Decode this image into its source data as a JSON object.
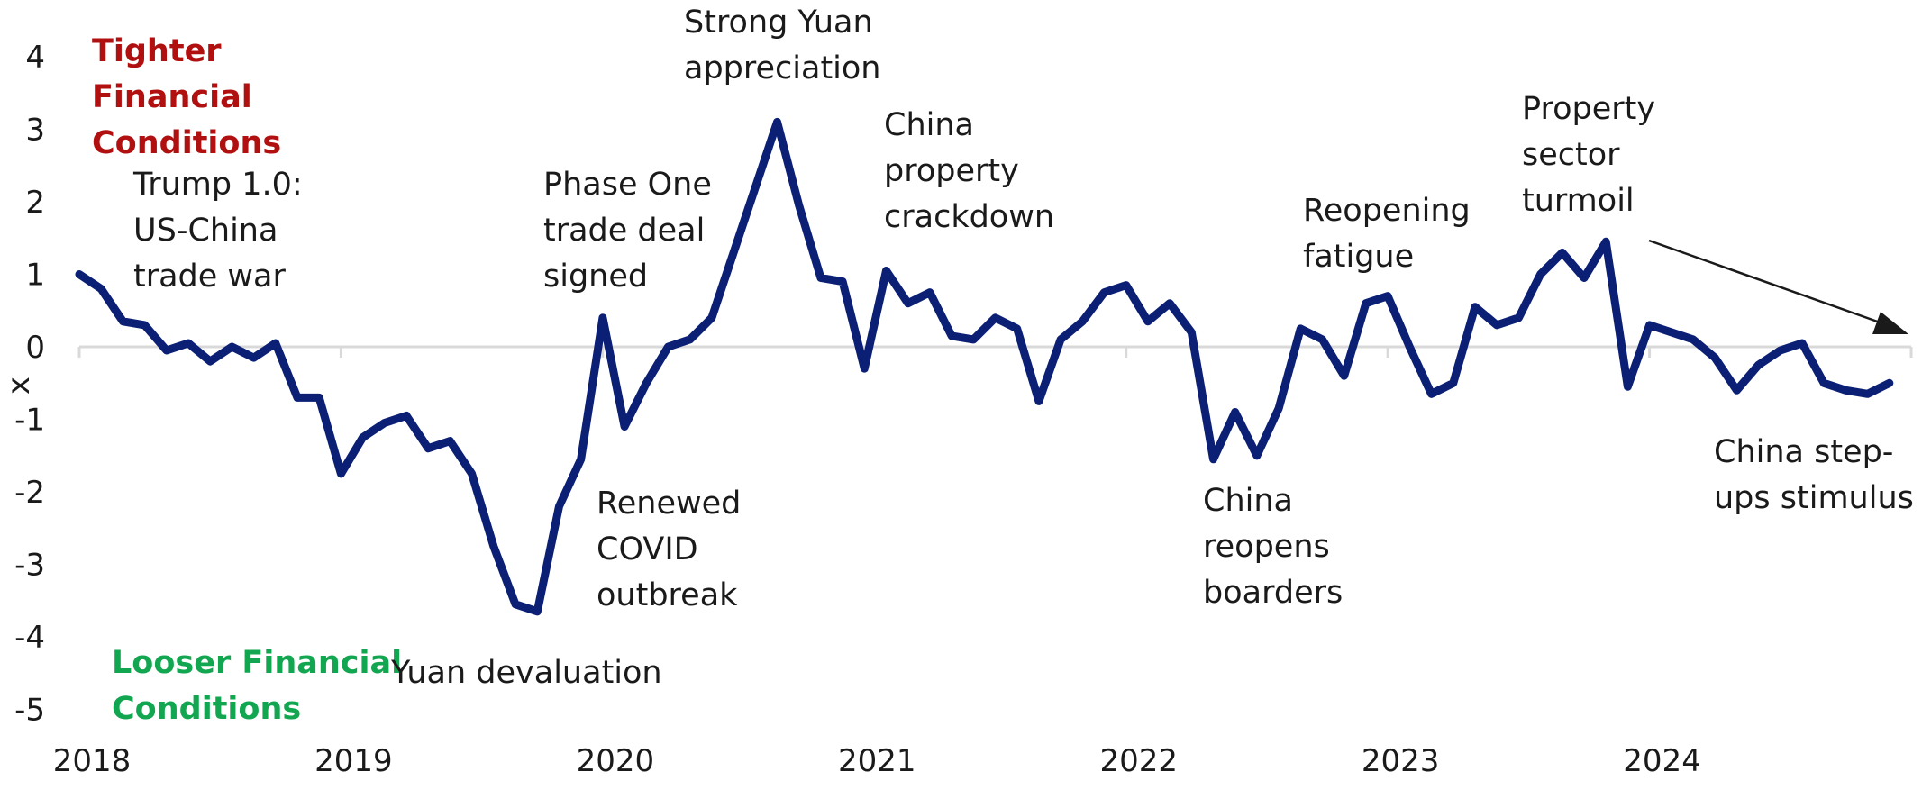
{
  "chart_data": {
    "type": "line",
    "ylabel": "x",
    "ylim": [
      -5,
      4
    ],
    "yticks": [
      "4",
      "3",
      "2",
      "1",
      "0",
      "-1",
      "-2",
      "-3",
      "-4",
      "-5"
    ],
    "xticks": [
      "2018",
      "2019",
      "2020",
      "2021",
      "2022",
      "2023",
      "2024"
    ],
    "grid": false,
    "line_color": "#0b1f75",
    "series": [
      {
        "values": [
          {
            "date": "2018-01",
            "y": 1.0
          },
          {
            "date": "2018-02",
            "y": 0.8
          },
          {
            "date": "2018-03",
            "y": 0.35
          },
          {
            "date": "2018-04",
            "y": 0.3
          },
          {
            "date": "2018-05",
            "y": -0.05
          },
          {
            "date": "2018-06",
            "y": 0.05
          },
          {
            "date": "2018-07",
            "y": -0.2
          },
          {
            "date": "2018-08",
            "y": 0.0
          },
          {
            "date": "2018-09",
            "y": -0.15
          },
          {
            "date": "2018-10",
            "y": 0.05
          },
          {
            "date": "2018-11",
            "y": -0.7
          },
          {
            "date": "2018-12",
            "y": -0.7
          },
          {
            "date": "2019-01",
            "y": -1.75
          },
          {
            "date": "2019-02",
            "y": -1.25
          },
          {
            "date": "2019-03",
            "y": -1.05
          },
          {
            "date": "2019-04",
            "y": -0.95
          },
          {
            "date": "2019-05",
            "y": -1.4
          },
          {
            "date": "2019-06",
            "y": -1.3
          },
          {
            "date": "2019-07",
            "y": -1.75
          },
          {
            "date": "2019-08",
            "y": -2.75
          },
          {
            "date": "2019-09",
            "y": -3.55
          },
          {
            "date": "2019-10",
            "y": -3.65
          },
          {
            "date": "2019-11",
            "y": -2.2
          },
          {
            "date": "2019-12",
            "y": -1.55
          },
          {
            "date": "2020-01",
            "y": 0.4
          },
          {
            "date": "2020-02",
            "y": -1.1
          },
          {
            "date": "2020-03",
            "y": -0.5
          },
          {
            "date": "2020-04",
            "y": 0.0
          },
          {
            "date": "2020-05",
            "y": 0.1
          },
          {
            "date": "2020-06",
            "y": 0.4
          },
          {
            "date": "2020-07",
            "y": 1.3
          },
          {
            "date": "2020-08",
            "y": 2.2
          },
          {
            "date": "2020-09",
            "y": 3.1
          },
          {
            "date": "2020-10",
            "y": 1.95
          },
          {
            "date": "2020-11",
            "y": 0.95
          },
          {
            "date": "2020-12",
            "y": 0.9
          },
          {
            "date": "2021-01",
            "y": -0.3
          },
          {
            "date": "2021-02",
            "y": 1.05
          },
          {
            "date": "2021-03",
            "y": 0.6
          },
          {
            "date": "2021-04",
            "y": 0.75
          },
          {
            "date": "2021-05",
            "y": 0.15
          },
          {
            "date": "2021-06",
            "y": 0.1
          },
          {
            "date": "2021-07",
            "y": 0.4
          },
          {
            "date": "2021-08",
            "y": 0.25
          },
          {
            "date": "2021-09",
            "y": -0.75
          },
          {
            "date": "2021-10",
            "y": 0.1
          },
          {
            "date": "2021-11",
            "y": 0.35
          },
          {
            "date": "2021-12",
            "y": 0.75
          },
          {
            "date": "2022-01",
            "y": 0.85
          },
          {
            "date": "2022-02",
            "y": 0.35
          },
          {
            "date": "2022-03",
            "y": 0.6
          },
          {
            "date": "2022-04",
            "y": 0.2
          },
          {
            "date": "2022-05",
            "y": -1.55
          },
          {
            "date": "2022-06",
            "y": -0.9
          },
          {
            "date": "2022-07",
            "y": -1.5
          },
          {
            "date": "2022-08",
            "y": -0.85
          },
          {
            "date": "2022-09",
            "y": 0.25
          },
          {
            "date": "2022-10",
            "y": 0.1
          },
          {
            "date": "2022-11",
            "y": -0.4
          },
          {
            "date": "2022-12",
            "y": 0.6
          },
          {
            "date": "2023-01",
            "y": 0.7
          },
          {
            "date": "2023-02",
            "y": 0.0
          },
          {
            "date": "2023-03",
            "y": -0.65
          },
          {
            "date": "2023-04",
            "y": -0.5
          },
          {
            "date": "2023-05",
            "y": 0.55
          },
          {
            "date": "2023-06",
            "y": 0.3
          },
          {
            "date": "2023-07",
            "y": 0.4
          },
          {
            "date": "2023-08",
            "y": 1.0
          },
          {
            "date": "2023-09",
            "y": 1.3
          },
          {
            "date": "2023-10",
            "y": 0.95
          },
          {
            "date": "2023-11",
            "y": 1.45
          },
          {
            "date": "2023-12",
            "y": -0.55
          },
          {
            "date": "2024-01",
            "y": 0.3
          },
          {
            "date": "2024-02",
            "y": 0.2
          },
          {
            "date": "2024-03",
            "y": 0.1
          },
          {
            "date": "2024-04",
            "y": -0.15
          },
          {
            "date": "2024-05",
            "y": -0.6
          },
          {
            "date": "2024-06",
            "y": -0.25
          },
          {
            "date": "2024-07",
            "y": -0.05
          },
          {
            "date": "2024-08",
            "y": 0.05
          },
          {
            "date": "2024-09",
            "y": -0.5
          },
          {
            "date": "2024-10",
            "y": -0.6
          },
          {
            "date": "2024-11",
            "y": -0.65
          },
          {
            "date": "2024-12",
            "y": -0.5
          }
        ]
      }
    ],
    "labels": {
      "tighter": {
        "lines": [
          "Tighter",
          "Financial",
          "Conditions"
        ],
        "color": "#b01010"
      },
      "looser": {
        "lines": [
          "Looser Financial",
          "Conditions"
        ],
        "color": "#12a650"
      }
    },
    "annotations": [
      {
        "lines": [
          "Trump 1.0:",
          "US-China",
          "trade war"
        ]
      },
      {
        "lines": [
          "Yuan devaluation"
        ]
      },
      {
        "lines": [
          "Phase One",
          "trade deal",
          "signed"
        ]
      },
      {
        "lines": [
          "Renewed",
          "COVID",
          "outbreak"
        ]
      },
      {
        "lines": [
          "Strong Yuan",
          "appreciation"
        ]
      },
      {
        "lines": [
          "China",
          "property",
          "crackdown"
        ]
      },
      {
        "lines": [
          "China",
          "reopens",
          "boarders"
        ]
      },
      {
        "lines": [
          "Reopening",
          "fatigue"
        ]
      },
      {
        "lines": [
          "Property",
          "sector",
          "turmoil"
        ]
      },
      {
        "lines": [
          "China step-",
          "ups stimulus"
        ]
      }
    ]
  }
}
